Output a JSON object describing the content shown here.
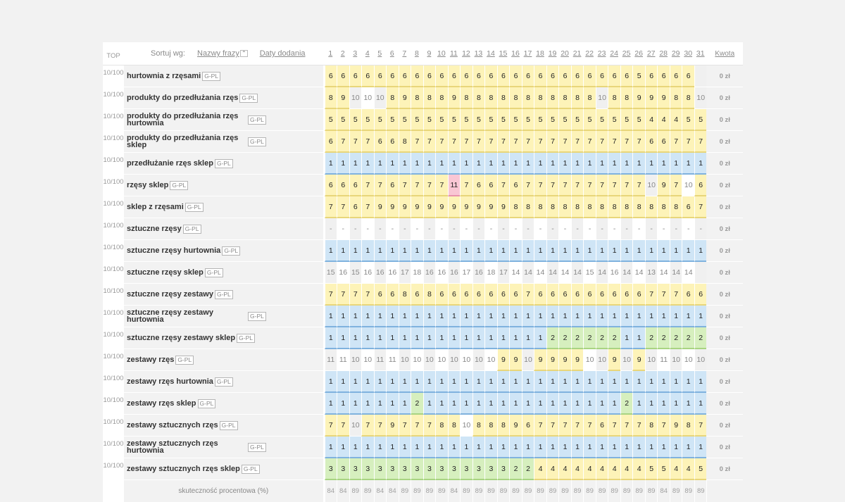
{
  "header": {
    "top_label": "TOP",
    "sort_label": "Sortuj wg:",
    "sort_by_phrase": "Nazwy frazy",
    "sort_by_date": "Daty dodania",
    "sort_arrow": "⌃",
    "days": [
      "1",
      "2",
      "3",
      "4",
      "5",
      "6",
      "7",
      "8",
      "9",
      "10",
      "11",
      "12",
      "13",
      "14",
      "15",
      "16",
      "17",
      "18",
      "19",
      "20",
      "21",
      "22",
      "23",
      "24",
      "25",
      "26",
      "27",
      "28",
      "29",
      "30",
      "31"
    ],
    "kwota_label": "Kwota"
  },
  "colors": {
    "blue": "#cfe5f6",
    "yellow": "#fdf3b8",
    "green": "#d6efbe",
    "pink": "#f9c6d4"
  },
  "rows": [
    {
      "score": "10/100",
      "phrase": "hurtownia z rzęsami",
      "tag": "G-PL",
      "kwota": "0 zł",
      "values": [
        "6",
        "6",
        "6",
        "6",
        "6",
        "6",
        "6",
        "6",
        "6",
        "6",
        "6",
        "6",
        "6",
        "6",
        "6",
        "6",
        "6",
        "6",
        "6",
        "6",
        "6",
        "6",
        "6",
        "6",
        "6",
        "5",
        "6",
        "6",
        "6",
        "6",
        ""
      ]
    },
    {
      "score": "10/100",
      "phrase": "produkty do przedłużania rzęs",
      "tag": "G-PL",
      "kwota": "0 zł",
      "values": [
        "8",
        "9",
        "10",
        "10",
        "10",
        "8",
        "9",
        "8",
        "8",
        "8",
        "9",
        "8",
        "8",
        "8",
        "8",
        "8",
        "8",
        "8",
        "8",
        "8",
        "8",
        "8",
        "10",
        "8",
        "8",
        "9",
        "9",
        "9",
        "8",
        "8",
        "10"
      ]
    },
    {
      "score": "10/100",
      "phrase": "produkty do przedłużania rzęs hurtownia",
      "tag": "G-PL",
      "kwota": "0 zł",
      "values": [
        "5",
        "5",
        "5",
        "5",
        "5",
        "5",
        "5",
        "5",
        "5",
        "5",
        "5",
        "5",
        "5",
        "5",
        "5",
        "5",
        "5",
        "5",
        "5",
        "5",
        "5",
        "5",
        "5",
        "5",
        "5",
        "5",
        "4",
        "4",
        "4",
        "5",
        "5"
      ]
    },
    {
      "score": "10/100",
      "phrase": "produkty do przedłużania rzęs sklep",
      "tag": "G-PL",
      "kwota": "0 zł",
      "values": [
        "6",
        "7",
        "7",
        "7",
        "6",
        "6",
        "8",
        "7",
        "7",
        "7",
        "7",
        "7",
        "7",
        "7",
        "7",
        "7",
        "7",
        "7",
        "7",
        "7",
        "7",
        "7",
        "7",
        "7",
        "7",
        "7",
        "6",
        "6",
        "7",
        "7",
        "7"
      ]
    },
    {
      "score": "10/100",
      "phrase": "przedłużanie rzęs sklep",
      "tag": "G-PL",
      "kwota": "0 zł",
      "values": [
        "1",
        "1",
        "1",
        "1",
        "1",
        "1",
        "1",
        "1",
        "1",
        "1",
        "1",
        "1",
        "1",
        "1",
        "1",
        "1",
        "1",
        "1",
        "1",
        "1",
        "1",
        "1",
        "1",
        "1",
        "1",
        "1",
        "1",
        "1",
        "1",
        "1",
        "1"
      ]
    },
    {
      "score": "10/100",
      "phrase": "rzęsy sklep",
      "tag": "G-PL",
      "kwota": "0 zł",
      "values": [
        "6",
        "6",
        "6",
        "7",
        "7",
        "6",
        "7",
        "7",
        "7",
        "7",
        "11",
        "7",
        "6",
        "6",
        "7",
        "6",
        "7",
        "7",
        "7",
        "7",
        "7",
        "7",
        "7",
        "7",
        "7",
        "7",
        "10",
        "9",
        "7",
        "10",
        "6"
      ]
    },
    {
      "score": "10/100",
      "phrase": "sklep z rzęsami",
      "tag": "G-PL",
      "kwota": "0 zł",
      "values": [
        "7",
        "7",
        "6",
        "7",
        "9",
        "9",
        "9",
        "9",
        "9",
        "9",
        "9",
        "9",
        "9",
        "9",
        "9",
        "8",
        "8",
        "8",
        "8",
        "8",
        "8",
        "8",
        "8",
        "8",
        "8",
        "8",
        "8",
        "8",
        "8",
        "6",
        "7"
      ]
    },
    {
      "score": "10/100",
      "phrase": "sztuczne rzęsy",
      "tag": "G-PL",
      "kwota": "0 zł",
      "values": [
        "-",
        "-",
        "-",
        "-",
        "-",
        "-",
        "-",
        "-",
        "-",
        "-",
        "-",
        "-",
        "-",
        "-",
        "-",
        "-",
        "-",
        "-",
        "-",
        "-",
        "-",
        "-",
        "-",
        "-",
        "-",
        "-",
        "-",
        "-",
        "-",
        "-",
        "-"
      ]
    },
    {
      "score": "10/100",
      "phrase": "sztuczne rzęsy hurtownia",
      "tag": "G-PL",
      "kwota": "0 zł",
      "values": [
        "1",
        "1",
        "1",
        "1",
        "1",
        "1",
        "1",
        "1",
        "1",
        "1",
        "1",
        "1",
        "1",
        "1",
        "1",
        "1",
        "1",
        "1",
        "1",
        "1",
        "1",
        "1",
        "1",
        "1",
        "1",
        "1",
        "1",
        "1",
        "1",
        "1",
        "1"
      ]
    },
    {
      "score": "10/100",
      "phrase": "sztuczne rzęsy sklep",
      "tag": "G-PL",
      "kwota": "0 zł",
      "values": [
        "15",
        "16",
        "15",
        "16",
        "16",
        "16",
        "17",
        "18",
        "16",
        "16",
        "16",
        "17",
        "16",
        "18",
        "17",
        "14",
        "14",
        "14",
        "14",
        "14",
        "14",
        "15",
        "14",
        "16",
        "14",
        "14",
        "13",
        "14",
        "14",
        "14",
        ""
      ]
    },
    {
      "score": "10/100",
      "phrase": "sztuczne rzęsy zestawy",
      "tag": "G-PL",
      "kwota": "0 zł",
      "values": [
        "7",
        "7",
        "7",
        "7",
        "6",
        "6",
        "8",
        "6",
        "8",
        "6",
        "6",
        "6",
        "6",
        "6",
        "6",
        "6",
        "7",
        "6",
        "6",
        "6",
        "6",
        "6",
        "6",
        "6",
        "6",
        "6",
        "7",
        "7",
        "7",
        "6",
        "6"
      ]
    },
    {
      "score": "10/100",
      "phrase": "sztuczne rzęsy zestawy hurtownia",
      "tag": "G-PL",
      "kwota": "0 zł",
      "values": [
        "1",
        "1",
        "1",
        "1",
        "1",
        "1",
        "1",
        "1",
        "1",
        "1",
        "1",
        "1",
        "1",
        "1",
        "1",
        "1",
        "1",
        "1",
        "1",
        "1",
        "1",
        "1",
        "1",
        "1",
        "1",
        "1",
        "1",
        "1",
        "1",
        "1",
        "1"
      ]
    },
    {
      "score": "10/100",
      "phrase": "sztuczne rzęsy zestawy sklep",
      "tag": "G-PL",
      "kwota": "0 zł",
      "values": [
        "1",
        "1",
        "1",
        "1",
        "1",
        "1",
        "1",
        "1",
        "1",
        "1",
        "1",
        "1",
        "1",
        "1",
        "1",
        "1",
        "1",
        "1",
        "2",
        "2",
        "2",
        "2",
        "2",
        "2",
        "1",
        "1",
        "2",
        "2",
        "2",
        "2",
        "2"
      ]
    },
    {
      "score": "10/100",
      "phrase": "zestawy rzęs",
      "tag": "G-PL",
      "kwota": "0 zł",
      "values": [
        "11",
        "11",
        "10",
        "10",
        "11",
        "11",
        "10",
        "10",
        "10",
        "10",
        "10",
        "10",
        "10",
        "10",
        "9",
        "9",
        "10",
        "9",
        "9",
        "9",
        "9",
        "10",
        "10",
        "9",
        "10",
        "9",
        "10",
        "11",
        "10",
        "10",
        "10"
      ]
    },
    {
      "score": "10/100",
      "phrase": "zestawy rzęs hurtownia",
      "tag": "G-PL",
      "kwota": "0 zł",
      "values": [
        "1",
        "1",
        "1",
        "1",
        "1",
        "1",
        "1",
        "1",
        "1",
        "1",
        "1",
        "1",
        "1",
        "1",
        "1",
        "1",
        "1",
        "1",
        "1",
        "1",
        "1",
        "1",
        "1",
        "1",
        "1",
        "1",
        "1",
        "1",
        "1",
        "1",
        "1"
      ]
    },
    {
      "score": "10/100",
      "phrase": "zestawy rzęs sklep",
      "tag": "G-PL",
      "kwota": "0 zł",
      "values": [
        "1",
        "1",
        "1",
        "1",
        "1",
        "1",
        "1",
        "2",
        "1",
        "1",
        "1",
        "1",
        "1",
        "1",
        "1",
        "1",
        "1",
        "1",
        "1",
        "1",
        "1",
        "1",
        "1",
        "1",
        "2",
        "1",
        "1",
        "1",
        "1",
        "1",
        "1"
      ]
    },
    {
      "score": "10/100",
      "phrase": "zestawy sztucznych rzęs",
      "tag": "G-PL",
      "kwota": "0 zł",
      "values": [
        "7",
        "7",
        "10",
        "7",
        "7",
        "9",
        "7",
        "7",
        "7",
        "8",
        "8",
        "10",
        "8",
        "8",
        "8",
        "9",
        "6",
        "7",
        "7",
        "7",
        "7",
        "7",
        "6",
        "7",
        "7",
        "7",
        "8",
        "7",
        "9",
        "8",
        "7"
      ]
    },
    {
      "score": "10/100",
      "phrase": "zestawy sztucznych rzęs hurtownia",
      "tag": "G-PL",
      "kwota": "0 zł",
      "values": [
        "1",
        "1",
        "1",
        "1",
        "1",
        "1",
        "1",
        "1",
        "1",
        "1",
        "1",
        "1",
        "1",
        "1",
        "1",
        "1",
        "1",
        "1",
        "1",
        "1",
        "1",
        "1",
        "1",
        "1",
        "1",
        "1",
        "1",
        "1",
        "1",
        "1",
        "1"
      ]
    },
    {
      "score": "10/100",
      "phrase": "zestawy sztucznych rzęs sklep",
      "tag": "G-PL",
      "kwota": "0 zł",
      "values": [
        "3",
        "3",
        "3",
        "3",
        "3",
        "3",
        "3",
        "3",
        "3",
        "3",
        "3",
        "3",
        "3",
        "3",
        "3",
        "2",
        "2",
        "4",
        "4",
        "4",
        "4",
        "4",
        "4",
        "4",
        "4",
        "4",
        "5",
        "5",
        "4",
        "4",
        "5"
      ]
    }
  ],
  "footer": {
    "label": "skuteczność procentowa (%)",
    "values": [
      "84",
      "84",
      "89",
      "89",
      "84",
      "84",
      "89",
      "89",
      "89",
      "89",
      "84",
      "89",
      "89",
      "89",
      "89",
      "89",
      "89",
      "89",
      "89",
      "89",
      "89",
      "89",
      "89",
      "89",
      "89",
      "89",
      "89",
      "84",
      "89",
      "89",
      "89"
    ]
  }
}
